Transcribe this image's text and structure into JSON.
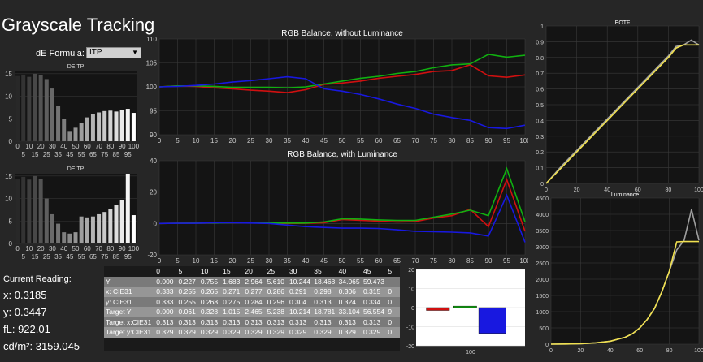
{
  "page": {
    "title": "Grayscale Tracking",
    "formula_label": "dE Formula:",
    "formula_value": "ITP"
  },
  "reading": {
    "title": "Current Reading:",
    "x": "x: 0.3185",
    "y": "y: 0.3447",
    "fl": "fL: 922.01",
    "cd": "cd/m²: 3159.045"
  },
  "colors": {
    "background": "#262626",
    "plot_bg": "#141414",
    "red": "#d01010",
    "green": "#10b010",
    "blue": "#1818e0",
    "yellow": "#f0e050",
    "gray_line": "#a0a0a0"
  },
  "chart_data": [
    {
      "id": "deitp-top",
      "type": "bar",
      "title": "DEITP",
      "categories": [
        "0",
        "5",
        "10",
        "15",
        "20",
        "25",
        "30",
        "35",
        "40",
        "45",
        "50",
        "55",
        "60",
        "65",
        "70",
        "75",
        "80",
        "85",
        "90",
        "95",
        "100"
      ],
      "xticks_top": [
        "0",
        "10",
        "20",
        "30",
        "40",
        "50",
        "60",
        "70",
        "80",
        "90",
        "100"
      ],
      "xticks_bottom": [
        "5",
        "15",
        "25",
        "35",
        "45",
        "55",
        "65",
        "75",
        "85",
        "95"
      ],
      "values": [
        14.5,
        14.8,
        14.3,
        15.0,
        14.6,
        13.8,
        11.7,
        7.9,
        5.0,
        2.1,
        3.0,
        4.0,
        5.3,
        6.0,
        6.4,
        6.7,
        6.8,
        6.6,
        6.9,
        7.2,
        6.3
      ],
      "yticks": [
        0,
        5,
        10,
        15
      ],
      "ylim": [
        0,
        15.5
      ]
    },
    {
      "id": "deitp-bottom",
      "type": "bar",
      "title": "DEITP",
      "categories": [
        "0",
        "5",
        "10",
        "15",
        "20",
        "25",
        "30",
        "35",
        "40",
        "45",
        "50",
        "55",
        "60",
        "65",
        "70",
        "75",
        "80",
        "85",
        "90",
        "95",
        "100"
      ],
      "xticks_top": [
        "0",
        "10",
        "20",
        "30",
        "40",
        "50",
        "60",
        "70",
        "80",
        "90",
        "100"
      ],
      "xticks_bottom": [
        "5",
        "15",
        "25",
        "35",
        "45",
        "55",
        "65",
        "75",
        "85",
        "95"
      ],
      "values": [
        14.4,
        14.8,
        14.2,
        15.0,
        14.4,
        10.0,
        6.5,
        4.4,
        2.5,
        2.2,
        2.5,
        6.0,
        5.8,
        6.0,
        6.5,
        7.0,
        7.6,
        8.5,
        9.7,
        15.5,
        6.3
      ],
      "yticks": [
        0,
        5,
        10,
        15
      ],
      "ylim": [
        0,
        15.5
      ]
    },
    {
      "id": "rgb-balance-no-lum",
      "type": "line",
      "title": "RGB Balance, without Luminance",
      "x": [
        0,
        5,
        10,
        15,
        20,
        25,
        30,
        35,
        40,
        45,
        50,
        55,
        60,
        65,
        70,
        75,
        80,
        85,
        90,
        95,
        100
      ],
      "xticks": [
        0,
        5,
        10,
        15,
        20,
        25,
        30,
        35,
        40,
        45,
        50,
        55,
        60,
        65,
        70,
        75,
        80,
        85,
        90,
        95,
        100
      ],
      "yticks": [
        90,
        95,
        100,
        105,
        110
      ],
      "ylim": [
        90,
        110
      ],
      "series": [
        {
          "name": "Red",
          "color": "#d01010",
          "values": [
            100,
            100.2,
            100.1,
            99.8,
            99.6,
            99.3,
            99.1,
            98.8,
            99.4,
            100.5,
            100.8,
            101.2,
            101.8,
            102.2,
            102.6,
            103.2,
            103.4,
            104.6,
            102.3,
            102.0,
            102.5
          ]
        },
        {
          "name": "Green",
          "color": "#10b010",
          "values": [
            100,
            100.2,
            100.2,
            100.1,
            99.9,
            99.9,
            99.9,
            99.8,
            100.0,
            100.6,
            101.2,
            101.8,
            102.2,
            102.8,
            103.2,
            104.0,
            104.6,
            104.8,
            106.8,
            106.2,
            106.6
          ]
        },
        {
          "name": "Blue",
          "color": "#1818e0",
          "values": [
            100,
            100.1,
            100.3,
            100.6,
            101.0,
            101.3,
            101.7,
            102.1,
            101.7,
            99.6,
            99.1,
            98.4,
            97.5,
            96.4,
            95.5,
            94.3,
            93.6,
            93.0,
            91.5,
            91.3,
            92.0
          ]
        }
      ]
    },
    {
      "id": "rgb-balance-with-lum",
      "type": "line",
      "title": "RGB Balance, with Luminance",
      "x": [
        0,
        5,
        10,
        15,
        20,
        25,
        30,
        35,
        40,
        45,
        50,
        55,
        60,
        65,
        70,
        75,
        80,
        85,
        90,
        95,
        100
      ],
      "xticks": [
        0,
        5,
        10,
        15,
        20,
        25,
        30,
        35,
        40,
        45,
        50,
        55,
        60,
        65,
        70,
        75,
        80,
        85,
        90,
        95,
        100
      ],
      "yticks": [
        -20,
        0,
        20,
        40
      ],
      "ylim": [
        -20,
        40
      ],
      "series": [
        {
          "name": "Red",
          "color": "#d01010",
          "values": [
            0,
            0.1,
            0.2,
            0.3,
            0.5,
            0.4,
            0.2,
            0,
            0.1,
            0.5,
            2.5,
            2.0,
            1.5,
            1.0,
            1.2,
            3.5,
            5.0,
            9.0,
            -2.0,
            28.0,
            -5.0
          ]
        },
        {
          "name": "Green",
          "color": "#10b010",
          "values": [
            0,
            0.1,
            0.2,
            0.3,
            0.5,
            0.5,
            0.4,
            0.3,
            0.3,
            1.0,
            3.0,
            2.8,
            2.3,
            2.0,
            2.0,
            4.0,
            6.0,
            8.5,
            5.0,
            35.0,
            1.0
          ]
        },
        {
          "name": "Blue",
          "color": "#1818e0",
          "values": [
            0,
            0.1,
            0.1,
            0.5,
            0.5,
            0.3,
            0,
            -1.0,
            -2.0,
            -2.5,
            -3.0,
            -3.0,
            -3.2,
            -4.0,
            -5.0,
            -5.2,
            -5.5,
            -6.0,
            -8.0,
            18.0,
            -12.0
          ]
        }
      ]
    },
    {
      "id": "eotf",
      "type": "line",
      "title": "EOTF",
      "x": [
        0,
        10,
        20,
        30,
        40,
        50,
        60,
        70,
        80,
        85,
        90,
        95,
        100
      ],
      "xticks": [
        0,
        20,
        40,
        60,
        80,
        100
      ],
      "yticks": [
        0,
        0.1,
        0.2,
        0.3,
        0.4,
        0.5,
        0.6,
        0.7,
        0.8,
        0.9,
        1
      ],
      "ylim": [
        0,
        1
      ],
      "series": [
        {
          "name": "Target",
          "color": "#a0a0a0",
          "values": [
            0,
            0.11,
            0.21,
            0.31,
            0.41,
            0.51,
            0.61,
            0.71,
            0.81,
            0.87,
            0.88,
            0.91,
            0.88
          ]
        },
        {
          "name": "Measured",
          "color": "#f0e050",
          "values": [
            0,
            0.1,
            0.2,
            0.3,
            0.4,
            0.5,
            0.6,
            0.7,
            0.8,
            0.86,
            0.88,
            0.88,
            0.88
          ]
        }
      ]
    },
    {
      "id": "luminance",
      "type": "line",
      "title": "Luminance",
      "x": [
        0,
        10,
        20,
        30,
        40,
        50,
        55,
        60,
        65,
        70,
        75,
        80,
        85,
        90,
        95,
        100
      ],
      "xticks": [
        0,
        20,
        40,
        60,
        80,
        100
      ],
      "yticks": [
        0,
        500,
        1000,
        1500,
        2000,
        2500,
        3000,
        3500,
        4000,
        4500
      ],
      "ylim": [
        0,
        4500
      ],
      "series": [
        {
          "name": "Target",
          "color": "#a0a0a0",
          "values": [
            0,
            5,
            15,
            40,
            90,
            210,
            320,
            500,
            760,
            1100,
            1620,
            2250,
            2900,
            3200,
            4150,
            3200
          ]
        },
        {
          "name": "Measured",
          "color": "#f0e050",
          "values": [
            0,
            5,
            15,
            40,
            90,
            210,
            320,
            500,
            760,
            1100,
            1620,
            2250,
            3150,
            3159,
            3159,
            3159
          ]
        }
      ]
    },
    {
      "id": "rgb-bars",
      "type": "bar",
      "xlabel": "100",
      "categories": [
        "Red",
        "Green",
        "Blue"
      ],
      "values": [
        -1.5,
        0.8,
        -13.5
      ],
      "yticks": [
        -20,
        -10,
        0,
        10,
        20
      ],
      "ylim": [
        -20,
        20
      ]
    }
  ],
  "table": {
    "headers": [
      "0",
      "5",
      "10",
      "15",
      "20",
      "25",
      "30",
      "35",
      "40",
      "45",
      "5"
    ],
    "rows": [
      {
        "label": "Y",
        "values": [
          "0.000",
          "0.227",
          "0.755",
          "1.683",
          "2.964",
          "5.610",
          "10.244",
          "18.468",
          "34.065",
          "59.473",
          ""
        ]
      },
      {
        "label": "x: CIE31",
        "values": [
          "0.333",
          "0.255",
          "0.265",
          "0.271",
          "0.277",
          "0.286",
          "0.291",
          "0.298",
          "0.306",
          "0.315",
          "0"
        ]
      },
      {
        "label": "y: CIE31",
        "values": [
          "0.333",
          "0.255",
          "0.268",
          "0.275",
          "0.284",
          "0.296",
          "0.304",
          "0.313",
          "0.324",
          "0.334",
          "0"
        ]
      },
      {
        "label": "Target Y",
        "values": [
          "0.000",
          "0.061",
          "0.328",
          "1.015",
          "2.465",
          "5.238",
          "10.214",
          "18.781",
          "33.104",
          "56.554",
          "9"
        ]
      },
      {
        "label": "Target x:CIE31",
        "values": [
          "0.313",
          "0.313",
          "0.313",
          "0.313",
          "0.313",
          "0.313",
          "0.313",
          "0.313",
          "0.313",
          "0.313",
          "0"
        ]
      },
      {
        "label": "Target y:CIE31",
        "values": [
          "0.329",
          "0.329",
          "0.329",
          "0.329",
          "0.329",
          "0.329",
          "0.329",
          "0.329",
          "0.329",
          "0.329",
          "0"
        ]
      }
    ]
  }
}
